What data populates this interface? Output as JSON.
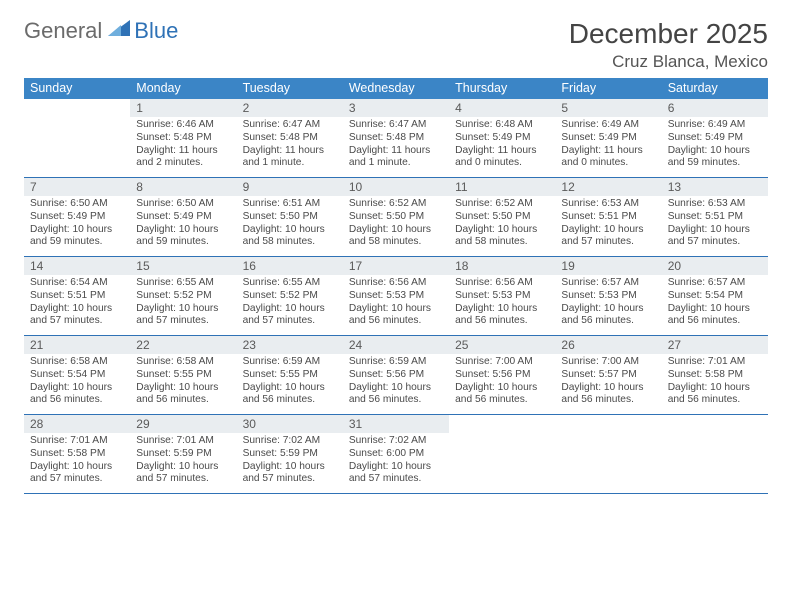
{
  "logo": {
    "text1": "General",
    "text2": "Blue"
  },
  "title": "December 2025",
  "location": "Cruz Blanca, Mexico",
  "colors": {
    "header_bg": "#3b85c6",
    "header_text": "#ffffff",
    "daynum_bg": "#e9edf0",
    "week_border": "#2f72b6",
    "logo_gray": "#6b6b6b",
    "logo_blue": "#2f72b6"
  },
  "weekdays": [
    "Sunday",
    "Monday",
    "Tuesday",
    "Wednesday",
    "Thursday",
    "Friday",
    "Saturday"
  ],
  "first_weekday_index": 1,
  "days_in_month": 31,
  "sun_data": {
    "1": {
      "sunrise": "6:46 AM",
      "sunset": "5:48 PM",
      "daylight": "11 hours and 2 minutes."
    },
    "2": {
      "sunrise": "6:47 AM",
      "sunset": "5:48 PM",
      "daylight": "11 hours and 1 minute."
    },
    "3": {
      "sunrise": "6:47 AM",
      "sunset": "5:48 PM",
      "daylight": "11 hours and 1 minute."
    },
    "4": {
      "sunrise": "6:48 AM",
      "sunset": "5:49 PM",
      "daylight": "11 hours and 0 minutes."
    },
    "5": {
      "sunrise": "6:49 AM",
      "sunset": "5:49 PM",
      "daylight": "11 hours and 0 minutes."
    },
    "6": {
      "sunrise": "6:49 AM",
      "sunset": "5:49 PM",
      "daylight": "10 hours and 59 minutes."
    },
    "7": {
      "sunrise": "6:50 AM",
      "sunset": "5:49 PM",
      "daylight": "10 hours and 59 minutes."
    },
    "8": {
      "sunrise": "6:50 AM",
      "sunset": "5:49 PM",
      "daylight": "10 hours and 59 minutes."
    },
    "9": {
      "sunrise": "6:51 AM",
      "sunset": "5:50 PM",
      "daylight": "10 hours and 58 minutes."
    },
    "10": {
      "sunrise": "6:52 AM",
      "sunset": "5:50 PM",
      "daylight": "10 hours and 58 minutes."
    },
    "11": {
      "sunrise": "6:52 AM",
      "sunset": "5:50 PM",
      "daylight": "10 hours and 58 minutes."
    },
    "12": {
      "sunrise": "6:53 AM",
      "sunset": "5:51 PM",
      "daylight": "10 hours and 57 minutes."
    },
    "13": {
      "sunrise": "6:53 AM",
      "sunset": "5:51 PM",
      "daylight": "10 hours and 57 minutes."
    },
    "14": {
      "sunrise": "6:54 AM",
      "sunset": "5:51 PM",
      "daylight": "10 hours and 57 minutes."
    },
    "15": {
      "sunrise": "6:55 AM",
      "sunset": "5:52 PM",
      "daylight": "10 hours and 57 minutes."
    },
    "16": {
      "sunrise": "6:55 AM",
      "sunset": "5:52 PM",
      "daylight": "10 hours and 57 minutes."
    },
    "17": {
      "sunrise": "6:56 AM",
      "sunset": "5:53 PM",
      "daylight": "10 hours and 56 minutes."
    },
    "18": {
      "sunrise": "6:56 AM",
      "sunset": "5:53 PM",
      "daylight": "10 hours and 56 minutes."
    },
    "19": {
      "sunrise": "6:57 AM",
      "sunset": "5:53 PM",
      "daylight": "10 hours and 56 minutes."
    },
    "20": {
      "sunrise": "6:57 AM",
      "sunset": "5:54 PM",
      "daylight": "10 hours and 56 minutes."
    },
    "21": {
      "sunrise": "6:58 AM",
      "sunset": "5:54 PM",
      "daylight": "10 hours and 56 minutes."
    },
    "22": {
      "sunrise": "6:58 AM",
      "sunset": "5:55 PM",
      "daylight": "10 hours and 56 minutes."
    },
    "23": {
      "sunrise": "6:59 AM",
      "sunset": "5:55 PM",
      "daylight": "10 hours and 56 minutes."
    },
    "24": {
      "sunrise": "6:59 AM",
      "sunset": "5:56 PM",
      "daylight": "10 hours and 56 minutes."
    },
    "25": {
      "sunrise": "7:00 AM",
      "sunset": "5:56 PM",
      "daylight": "10 hours and 56 minutes."
    },
    "26": {
      "sunrise": "7:00 AM",
      "sunset": "5:57 PM",
      "daylight": "10 hours and 56 minutes."
    },
    "27": {
      "sunrise": "7:01 AM",
      "sunset": "5:58 PM",
      "daylight": "10 hours and 56 minutes."
    },
    "28": {
      "sunrise": "7:01 AM",
      "sunset": "5:58 PM",
      "daylight": "10 hours and 57 minutes."
    },
    "29": {
      "sunrise": "7:01 AM",
      "sunset": "5:59 PM",
      "daylight": "10 hours and 57 minutes."
    },
    "30": {
      "sunrise": "7:02 AM",
      "sunset": "5:59 PM",
      "daylight": "10 hours and 57 minutes."
    },
    "31": {
      "sunrise": "7:02 AM",
      "sunset": "6:00 PM",
      "daylight": "10 hours and 57 minutes."
    }
  },
  "labels": {
    "sunrise_prefix": "Sunrise: ",
    "sunset_prefix": "Sunset: ",
    "daylight_prefix": "Daylight: "
  }
}
